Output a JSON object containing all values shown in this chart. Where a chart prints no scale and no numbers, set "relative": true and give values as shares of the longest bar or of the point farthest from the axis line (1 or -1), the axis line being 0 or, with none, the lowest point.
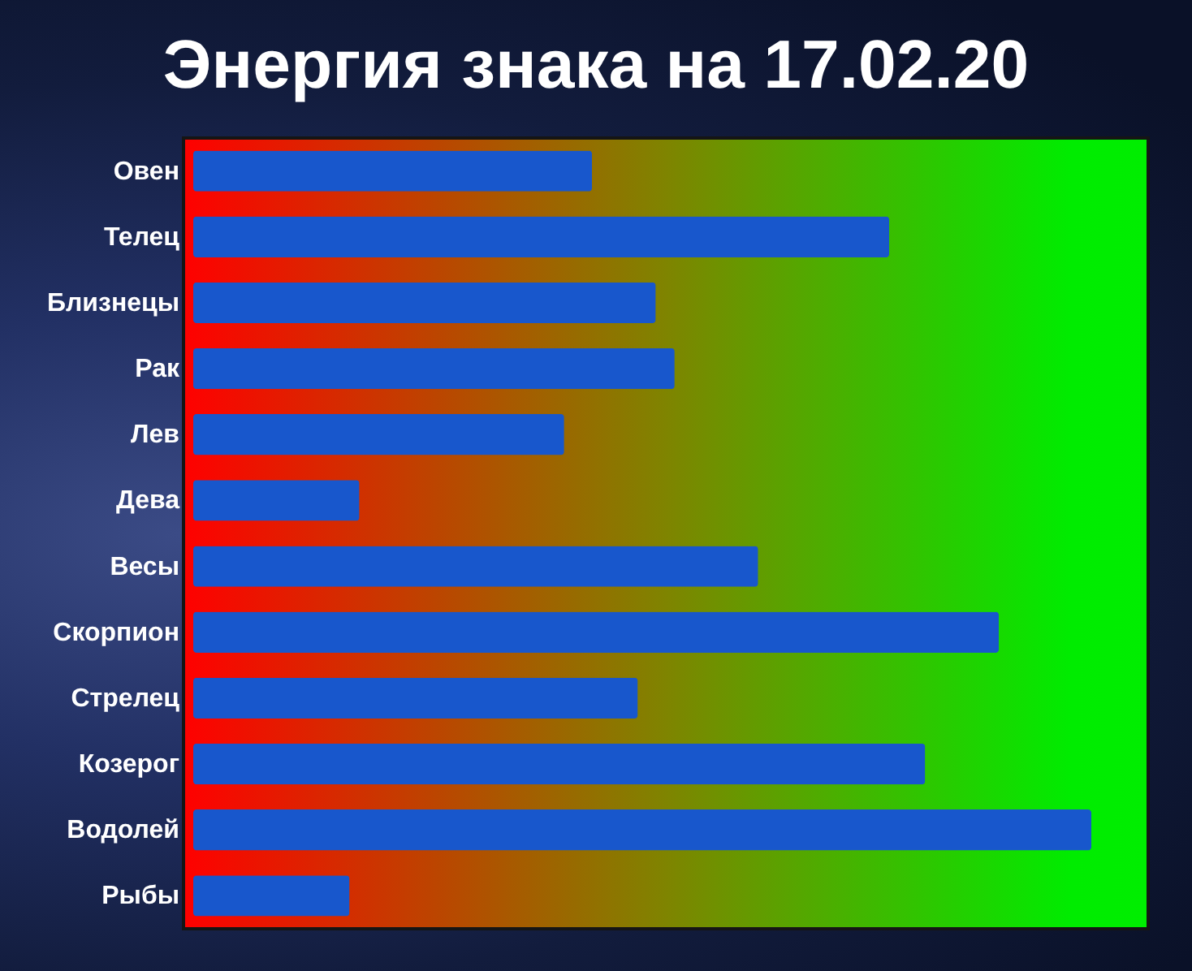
{
  "chart_data": {
    "type": "bar",
    "title": "Энергия знака на 17.02.20",
    "orientation": "horizontal",
    "relative": true,
    "categories": [
      "Овен",
      "Телец",
      "Близнецы",
      "Рак",
      "Лев",
      "Дева",
      "Весы",
      "Скорпион",
      "Стрелец",
      "Козерог",
      "Водолей",
      "Рыбы"
    ],
    "values": [
      0.444,
      0.775,
      0.515,
      0.536,
      0.413,
      0.185,
      0.629,
      0.897,
      0.495,
      0.815,
      1,
      0.174
    ],
    "color": "#1857cc"
  }
}
